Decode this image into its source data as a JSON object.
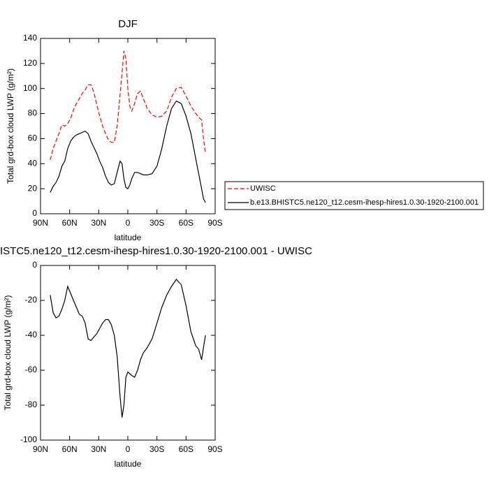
{
  "chart_data": [
    {
      "type": "line",
      "title": "DJF",
      "xlabel": "latitude",
      "ylabel": "Total grd-box cloud LWP (g/m²)",
      "x": [
        80,
        77,
        74,
        71,
        68,
        65,
        62,
        59,
        56,
        53,
        50,
        47,
        44,
        41,
        38,
        35,
        32,
        29,
        26,
        23,
        20,
        17,
        14,
        11,
        8,
        6,
        4,
        2,
        0,
        -2,
        -4,
        -7,
        -10,
        -13,
        -16,
        -20,
        -25,
        -30,
        -35,
        -40,
        -45,
        -50,
        -55,
        -60,
        -65,
        -70,
        -73,
        -76,
        -78,
        -80
      ],
      "series": [
        {
          "name": "UWISC",
          "color": "#ff0000",
          "linestyle": "dashed",
          "values": [
            43,
            52,
            58,
            64,
            71,
            70,
            72,
            76,
            83,
            88,
            92,
            96,
            99,
            103,
            103,
            97,
            87,
            78,
            70,
            64,
            59,
            57,
            57,
            70,
            95,
            112,
            130,
            124,
            100,
            86,
            82,
            88,
            96,
            98,
            92,
            84,
            79,
            77,
            78,
            82,
            93,
            100,
            101,
            94,
            86,
            80,
            77,
            75,
            60,
            49
          ]
        },
        {
          "name": "b.e13.BHISTC5.ne120_t12.cesm-ihesp-hires1.0.30-1920-2100.001",
          "color": "#000000",
          "linestyle": "solid",
          "values": [
            17,
            22,
            25,
            30,
            38,
            42,
            52,
            58,
            61,
            63,
            64,
            65,
            66,
            64,
            58,
            53,
            48,
            42,
            37,
            30,
            25,
            23,
            24,
            33,
            42,
            40,
            28,
            21,
            20,
            23,
            28,
            33,
            33,
            32,
            31,
            31,
            32,
            38,
            52,
            70,
            84,
            90,
            88,
            78,
            64,
            44,
            32,
            20,
            12,
            9
          ]
        }
      ],
      "xlim": [
        90,
        -90
      ],
      "xticks": [
        {
          "value": 90,
          "label": "90N"
        },
        {
          "value": 60,
          "label": "60N"
        },
        {
          "value": 30,
          "label": "30N"
        },
        0,
        {
          "value": -30,
          "label": "30S"
        },
        {
          "value": -60,
          "label": "60S"
        },
        {
          "value": -90,
          "label": "90S"
        }
      ],
      "ylim": [
        0,
        140
      ],
      "yticks": [
        0,
        20,
        40,
        60,
        80,
        100,
        120,
        140
      ],
      "legend": "right"
    },
    {
      "type": "line",
      "title": "ISTC5.ne120_t12.cesm-ihesp-hires1.0.30-1920-2100.001 - UWISC",
      "xlabel": "latitude",
      "ylabel": "Total grd-box cloud LWP (g/m²)",
      "x": [
        80,
        77,
        74,
        71,
        68,
        65,
        62,
        59,
        56,
        53,
        50,
        47,
        44,
        41,
        38,
        35,
        32,
        29,
        26,
        23,
        20,
        17,
        14,
        11,
        8,
        6,
        4,
        2,
        0,
        -2,
        -4,
        -7,
        -10,
        -13,
        -16,
        -20,
        -25,
        -30,
        -35,
        -40,
        -45,
        -50,
        -55,
        -60,
        -65,
        -70,
        -73,
        -76,
        -78,
        -80
      ],
      "series": [
        {
          "color": "#000000",
          "linestyle": "solid",
          "values": [
            -17,
            -27,
            -30,
            -29,
            -25,
            -20,
            -12,
            -16,
            -20,
            -24,
            -28,
            -29,
            -33,
            -42,
            -43,
            -41,
            -39,
            -36,
            -33,
            -31,
            -31,
            -34,
            -40,
            -52,
            -75,
            -87,
            -80,
            -64,
            -61,
            -62,
            -63,
            -64,
            -60,
            -54,
            -50,
            -47,
            -42,
            -33,
            -24,
            -17,
            -12,
            -8,
            -11,
            -23,
            -38,
            -46,
            -48,
            -54,
            -47,
            -40
          ]
        }
      ],
      "xlim": [
        90,
        -90
      ],
      "xticks": [
        {
          "value": 90,
          "label": "90N"
        },
        {
          "value": 60,
          "label": "60N"
        },
        {
          "value": 30,
          "label": "30N"
        },
        0,
        {
          "value": -30,
          "label": "30S"
        },
        {
          "value": -60,
          "label": "60S"
        },
        {
          "value": -90,
          "label": "90S"
        }
      ],
      "ylim": [
        -100,
        0
      ],
      "yticks": [
        -100,
        -80,
        -60,
        -40,
        -20,
        0
      ]
    }
  ]
}
